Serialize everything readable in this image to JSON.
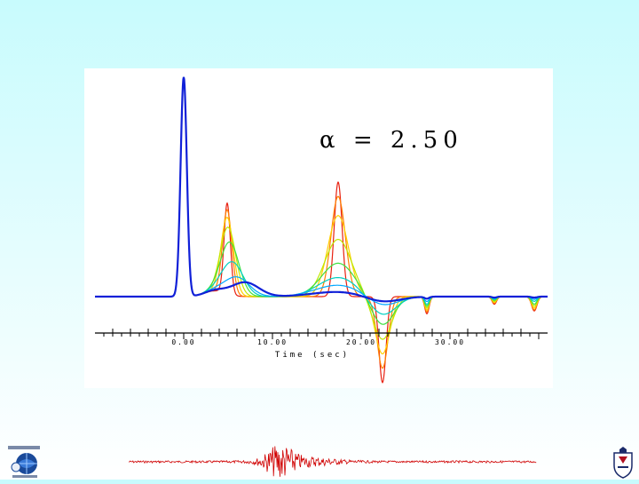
{
  "slide": {
    "background_top": "#c8fbfd",
    "background_bottom": "#ffffff"
  },
  "annotation": {
    "symbol": "α",
    "equals": "=",
    "value": "2.50",
    "text": "α = 2.50"
  },
  "chart_data": {
    "type": "line",
    "description_of_series": "family of synthetic waveforms, colored blue to red",
    "xlabel": "Time (sec)",
    "xlabel_display": "T i m e  ( s e c )",
    "x_ticks": [
      0,
      10,
      20,
      30
    ],
    "x_tick_labels": [
      "0.00",
      "10.00",
      "20.00",
      "30.00"
    ],
    "xlim": [
      -10,
      41
    ],
    "ylim": [
      -1.0,
      2.4
    ],
    "grid": false,
    "legend": "none",
    "colors": [
      "#1020d8",
      "#00a8ff",
      "#00d0c0",
      "#40e040",
      "#c0e800",
      "#ffd000",
      "#ff8000",
      "#e82010"
    ],
    "series": [
      {
        "values_x": [
          0.0,
          4.9,
          6.9,
          17.4,
          22.4,
          27.4,
          35.0,
          39.5
        ],
        "values_y": [
          2.3,
          0.08,
          0.15,
          0.05,
          -0.06,
          -0.02,
          -0.01,
          -0.01
        ]
      },
      {
        "values_x": [
          0.0,
          4.9,
          6.0,
          17.4,
          22.4,
          27.4,
          35.0,
          39.5
        ],
        "values_y": [
          2.3,
          0.12,
          0.2,
          0.12,
          -0.1,
          -0.05,
          -0.02,
          -0.03
        ]
      },
      {
        "values_x": [
          0.0,
          4.9,
          5.5,
          17.4,
          22.4,
          27.4,
          35.0,
          39.5
        ],
        "values_y": [
          2.3,
          0.2,
          0.35,
          0.2,
          -0.2,
          -0.08,
          -0.03,
          -0.05
        ]
      },
      {
        "values_x": [
          0.0,
          4.9,
          5.2,
          17.4,
          22.4,
          27.4,
          35.0,
          39.5
        ],
        "values_y": [
          2.3,
          0.35,
          0.55,
          0.35,
          -0.3,
          -0.1,
          -0.04,
          -0.08
        ]
      },
      {
        "values_x": [
          0.0,
          4.9,
          5.0,
          17.4,
          22.4,
          27.4,
          35.0,
          39.5
        ],
        "values_y": [
          2.3,
          0.55,
          0.7,
          0.6,
          -0.45,
          -0.12,
          -0.05,
          -0.1
        ]
      },
      {
        "values_x": [
          0.0,
          4.9,
          4.9,
          17.4,
          22.4,
          27.4,
          35.0,
          39.5
        ],
        "values_y": [
          2.3,
          0.75,
          0.8,
          0.85,
          -0.6,
          -0.14,
          -0.06,
          -0.12
        ]
      },
      {
        "values_x": [
          0.0,
          4.9,
          4.9,
          17.4,
          22.4,
          27.4,
          35.0,
          39.5
        ],
        "values_y": [
          2.3,
          0.88,
          0.88,
          1.05,
          -0.75,
          -0.16,
          -0.07,
          -0.14
        ]
      },
      {
        "values_x": [
          0.0,
          4.9,
          4.9,
          17.4,
          22.4,
          27.4,
          35.0,
          39.5
        ],
        "values_y": [
          2.3,
          0.95,
          0.95,
          1.2,
          -0.9,
          -0.18,
          -0.08,
          -0.15
        ]
      }
    ]
  },
  "logos": {
    "left": "university-earthquake-center-logo",
    "left_text": "",
    "right": "university-crest-logo"
  },
  "footer": {
    "seismogram": "seismogram-trace-decoration",
    "trace_color": "#d00000"
  }
}
